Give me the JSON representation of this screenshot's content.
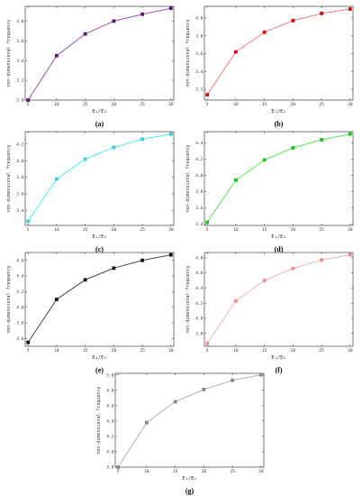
{
  "chart_data": [
    {
      "type": "line",
      "caption": "(a)",
      "color": "#9a3fb0",
      "marker_color": "#5c1370",
      "x": [
        5,
        10,
        15,
        20,
        25,
        30
      ],
      "y": [
        3.0,
        3.45,
        3.67,
        3.8,
        3.87,
        3.93
      ],
      "xlabel": "E₁/E₂",
      "ylabel": "non-dimensional frequency",
      "xticks": [
        5,
        10,
        15,
        20,
        25,
        30
      ],
      "yticks": [
        3.0,
        3.2,
        3.4,
        3.6,
        3.8
      ],
      "ytick_labels": [
        "3.0",
        "3.2",
        "3.4",
        "3.6",
        "3.8"
      ],
      "xlim": [
        4.5,
        30.5
      ],
      "ylim": [
        3.0,
        3.95
      ]
    },
    {
      "type": "line",
      "caption": "(b)",
      "color": "#f07070",
      "marker_color": "#d01010",
      "x": [
        5,
        10,
        15,
        20,
        25,
        30
      ],
      "y": [
        3.14,
        3.62,
        3.84,
        3.97,
        4.05,
        4.1
      ],
      "xlabel": "E₁/E₂",
      "ylabel": "non-dimensional frequency",
      "xticks": [
        5,
        10,
        15,
        20,
        25,
        30
      ],
      "yticks": [
        3.2,
        3.4,
        3.6,
        3.8,
        4.0
      ],
      "ytick_labels": [
        "3.2",
        "3.4",
        "3.6",
        "3.8",
        "4.0"
      ],
      "xlim": [
        4.5,
        30.5
      ],
      "ylim": [
        3.08,
        4.13
      ]
    },
    {
      "type": "line",
      "caption": "(c)",
      "color": "#30e8f0",
      "marker_color": "#30d0e0",
      "x": [
        5,
        10,
        15,
        20,
        25,
        30
      ],
      "y": [
        3.27,
        3.78,
        4.02,
        4.16,
        4.26,
        4.32
      ],
      "xlabel": "E₁/E₂",
      "ylabel": "non-dimensional frequency",
      "xticks": [
        5,
        10,
        15,
        20,
        25,
        30
      ],
      "yticks": [
        3.4,
        3.6,
        3.8,
        4.0,
        4.2
      ],
      "ytick_labels": [
        "3.4",
        "3.6",
        "3.8",
        "4.0",
        "4.2"
      ],
      "xlim": [
        4.5,
        30.5
      ],
      "ylim": [
        3.22,
        4.35
      ]
    },
    {
      "type": "line",
      "caption": "(d)",
      "color": "#3ee83e",
      "marker_color": "#20c020",
      "x": [
        5,
        10,
        15,
        20,
        25,
        30
      ],
      "y": [
        3.42,
        3.94,
        4.19,
        4.34,
        4.44,
        4.51
      ],
      "xlabel": "E₁/E₂",
      "ylabel": "non-dimensional frequency",
      "xticks": [
        5,
        10,
        15,
        20,
        25,
        30
      ],
      "yticks": [
        3.4,
        3.6,
        3.8,
        4.0,
        4.2,
        4.4
      ],
      "ytick_labels": [
        "3.4",
        "3.6",
        "3.8",
        "4.0",
        "4.2",
        "4.4"
      ],
      "xlim": [
        4.5,
        30.5
      ],
      "ylim": [
        3.38,
        4.54
      ]
    },
    {
      "type": "line",
      "caption": "(e)",
      "color": "#333333",
      "marker_color": "#111111",
      "x": [
        5,
        10,
        15,
        20,
        25,
        30
      ],
      "y": [
        3.55,
        4.1,
        4.35,
        4.5,
        4.6,
        4.67
      ],
      "xlabel": "E₁/E₂",
      "ylabel": "non-dimensional frequency",
      "xticks": [
        5,
        10,
        15,
        20,
        25,
        30
      ],
      "yticks": [
        3.6,
        3.8,
        4.0,
        4.2,
        4.4,
        4.6
      ],
      "ytick_labels": [
        "3.6",
        "3.8",
        "4.0",
        "4.2",
        "4.4",
        "4.6"
      ],
      "xlim": [
        4.5,
        30.5
      ],
      "ylim": [
        3.5,
        4.7
      ]
    },
    {
      "type": "line",
      "caption": "(f)",
      "color": "#f4a8a8",
      "marker_color": "#e89090",
      "x": [
        5,
        10,
        15,
        20,
        25,
        30
      ],
      "y": [
        3.67,
        4.23,
        4.5,
        4.66,
        4.77,
        4.84
      ],
      "xlabel": "E₁/E₂",
      "ylabel": "non-dimensional frequency",
      "xticks": [
        5,
        10,
        15,
        20,
        25,
        30
      ],
      "yticks": [
        3.8,
        4.0,
        4.2,
        4.4,
        4.6,
        4.8
      ],
      "ytick_labels": [
        "3.8",
        "4.0",
        "4.2",
        "4.4",
        "4.6",
        "4.8"
      ],
      "xlim": [
        4.5,
        30.5
      ],
      "ylim": [
        3.63,
        4.87
      ]
    },
    {
      "type": "line",
      "caption": "(g)",
      "color": "#aaaaaa",
      "marker_color": "#888888",
      "x": [
        5,
        10,
        15,
        20,
        25,
        30
      ],
      "y": [
        3.8,
        4.38,
        4.65,
        4.81,
        4.93,
        5.0
      ],
      "xlabel": "E₁/E₂",
      "ylabel": "non-dimensional frequency",
      "xticks": [
        5,
        10,
        15,
        20,
        25,
        30
      ],
      "yticks": [
        3.8,
        4.0,
        4.2,
        4.4,
        4.6,
        4.8,
        5.0
      ],
      "ytick_labels": [
        "3.8",
        "4.0",
        "4.2",
        "4.4",
        "4.6",
        "4.8",
        "5.0"
      ],
      "xlim": [
        4.5,
        30.5
      ],
      "ylim": [
        3.8,
        5.02
      ]
    }
  ]
}
